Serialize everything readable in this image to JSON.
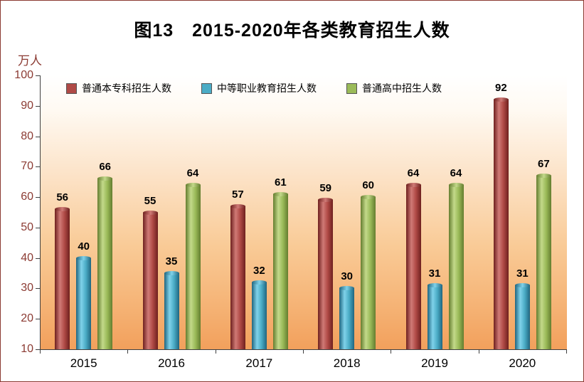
{
  "page": {
    "title": "图13　2015-2020年各类教育招生人数",
    "unit_label": "万人"
  },
  "chart_data": {
    "type": "bar",
    "title": "图13　2015-2020年各类教育招生人数",
    "xlabel": "",
    "ylabel": "万人",
    "categories": [
      "2015",
      "2016",
      "2017",
      "2018",
      "2019",
      "2020"
    ],
    "series": [
      {
        "name": "普通本专科招生人数",
        "values": [
          56,
          55,
          57,
          59,
          64,
          92
        ],
        "color": "#b04a46",
        "gradient": [
          "#6e201e",
          "#d07a76",
          "#b04a46"
        ]
      },
      {
        "name": "中等职业教育招生人数",
        "values": [
          40,
          35,
          32,
          30,
          31,
          31
        ],
        "color": "#4bacc6",
        "gradient": [
          "#20657f",
          "#7fd2ea",
          "#4bacc6"
        ]
      },
      {
        "name": "普通高中招生人数",
        "values": [
          66,
          64,
          61,
          60,
          64,
          67
        ],
        "color": "#9bbb59",
        "gradient": [
          "#647d2f",
          "#c3d98a",
          "#9bbb59"
        ]
      }
    ],
    "ylim": [
      10,
      100
    ],
    "yticks": [
      10,
      20,
      30,
      40,
      50,
      60,
      70,
      80,
      90,
      100
    ],
    "grid": false,
    "legend_position": "top-left-inside",
    "value_labels": true,
    "axis_label_color": "#8b3a32",
    "category_label_color": "#000000"
  }
}
